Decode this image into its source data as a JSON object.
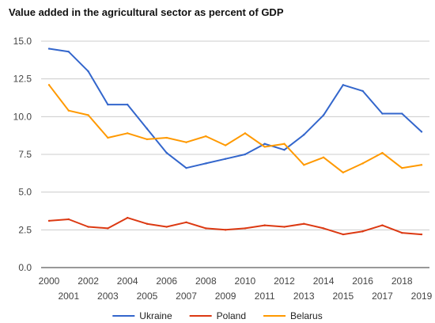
{
  "chart_data": {
    "type": "line",
    "title": "Value added in the agricultural sector as percent of GDP",
    "xlabel": "",
    "ylabel": "",
    "x": [
      "2000",
      "2001",
      "2002",
      "2003",
      "2004",
      "2005",
      "2006",
      "2007",
      "2008",
      "2009",
      "2010",
      "2011",
      "2012",
      "2013",
      "2014",
      "2015",
      "2016",
      "2017",
      "2018",
      "2019"
    ],
    "ylim": [
      0,
      15
    ],
    "yticks": [
      "0.0",
      "2.5",
      "5.0",
      "7.5",
      "10.0",
      "12.5",
      "15.0"
    ],
    "grid": true,
    "legend_position": "bottom",
    "series": [
      {
        "name": "Ukraine",
        "color": "#3366cc",
        "values": [
          14.5,
          14.3,
          13.0,
          10.8,
          10.8,
          9.2,
          7.6,
          6.6,
          6.9,
          7.2,
          7.5,
          8.2,
          7.8,
          8.8,
          10.1,
          12.1,
          11.7,
          10.2,
          10.2,
          9.0
        ]
      },
      {
        "name": "Poland",
        "color": "#dc3912",
        "values": [
          3.1,
          3.2,
          2.7,
          2.6,
          3.3,
          2.9,
          2.7,
          3.0,
          2.6,
          2.5,
          2.6,
          2.8,
          2.7,
          2.9,
          2.6,
          2.2,
          2.4,
          2.8,
          2.3,
          2.2
        ]
      },
      {
        "name": "Belarus",
        "color": "#ff9900",
        "values": [
          12.1,
          10.4,
          10.1,
          8.6,
          8.9,
          8.5,
          8.6,
          8.3,
          8.7,
          8.1,
          8.9,
          8.0,
          8.2,
          6.8,
          7.3,
          6.3,
          6.9,
          7.6,
          6.6,
          6.8
        ]
      }
    ]
  }
}
